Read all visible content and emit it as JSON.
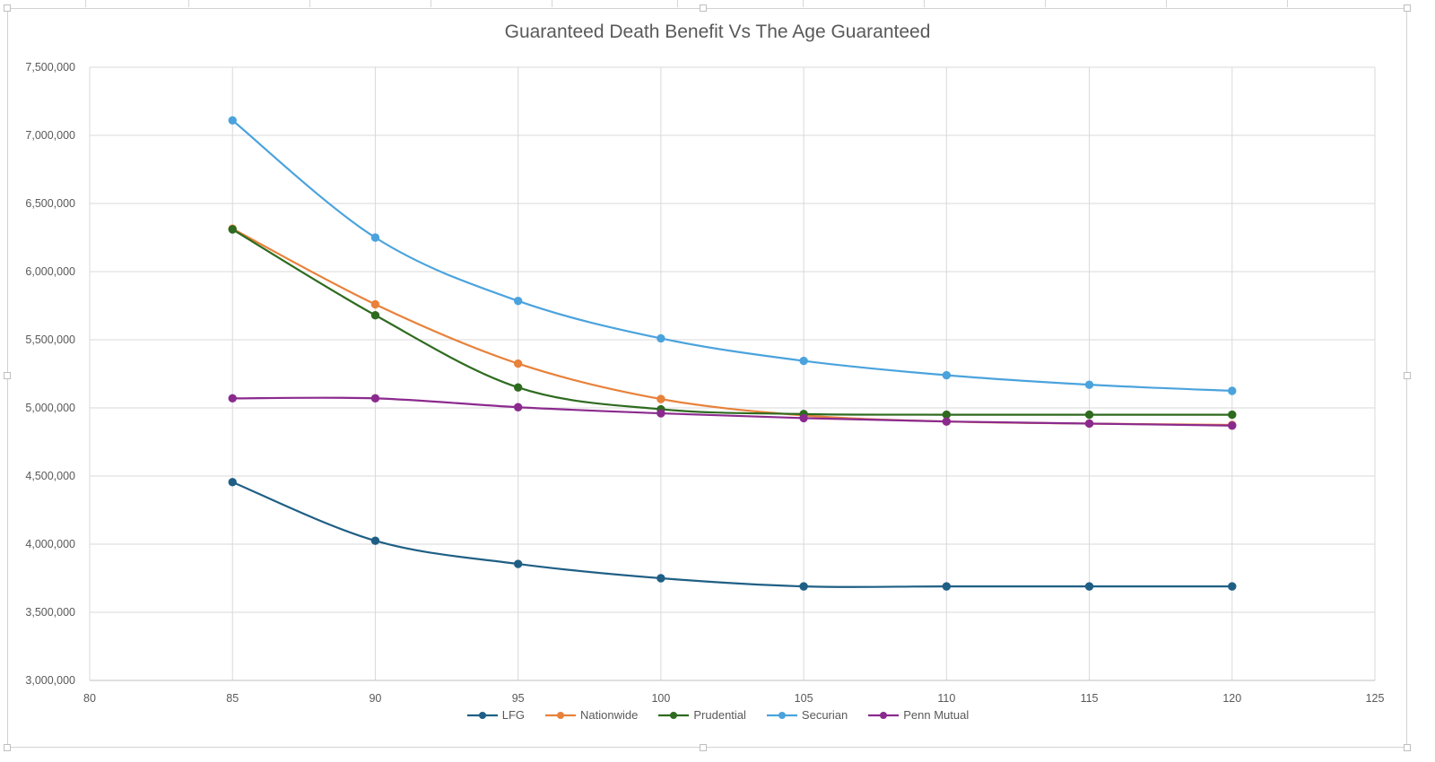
{
  "chart_data": {
    "type": "line",
    "title": "Guaranteed Death Benefit Vs The Age Guaranteed",
    "xlabel": "",
    "ylabel": "",
    "xlim": [
      80,
      125
    ],
    "ylim": [
      3000000,
      7500000
    ],
    "x_ticks": [
      80,
      85,
      90,
      95,
      100,
      105,
      110,
      115,
      120,
      125
    ],
    "y_ticks": [
      3000000,
      3500000,
      4000000,
      4500000,
      5000000,
      5500000,
      6000000,
      6500000,
      7000000,
      7500000
    ],
    "x_tick_labels": [
      "80",
      "85",
      "90",
      "95",
      "100",
      "105",
      "110",
      "115",
      "120",
      "125"
    ],
    "y_tick_labels": [
      "3,000,000",
      "3,500,000",
      "4,000,000",
      "4,500,000",
      "5,000,000",
      "5,500,000",
      "6,000,000",
      "6,500,000",
      "7,000,000",
      "7,500,000"
    ],
    "grid": true,
    "legend_position": "bottom",
    "x": [
      85,
      90,
      95,
      100,
      105,
      110,
      115,
      120
    ],
    "series": [
      {
        "name": "LFG",
        "color": "#1f5f85",
        "values": [
          4455000,
          4025000,
          3855000,
          3750000,
          3690000,
          3690000,
          3690000,
          3690000
        ]
      },
      {
        "name": "Nationwide",
        "color": "#e8813a",
        "values": [
          6315000,
          5760000,
          5325000,
          5065000,
          4945000,
          4900000,
          4885000,
          4875000
        ]
      },
      {
        "name": "Prudential",
        "color": "#2e6b1f",
        "values": [
          6310000,
          5680000,
          5150000,
          4990000,
          4955000,
          4950000,
          4950000,
          4950000
        ]
      },
      {
        "name": "Securian",
        "color": "#4ba3dd",
        "values": [
          7110000,
          6250000,
          5785000,
          5510000,
          5345000,
          5240000,
          5170000,
          5125000
        ]
      },
      {
        "name": "Penn Mutual",
        "color": "#8b2a8e",
        "values": [
          5070000,
          5070000,
          5005000,
          4960000,
          4925000,
          4900000,
          4885000,
          4870000
        ]
      }
    ]
  }
}
